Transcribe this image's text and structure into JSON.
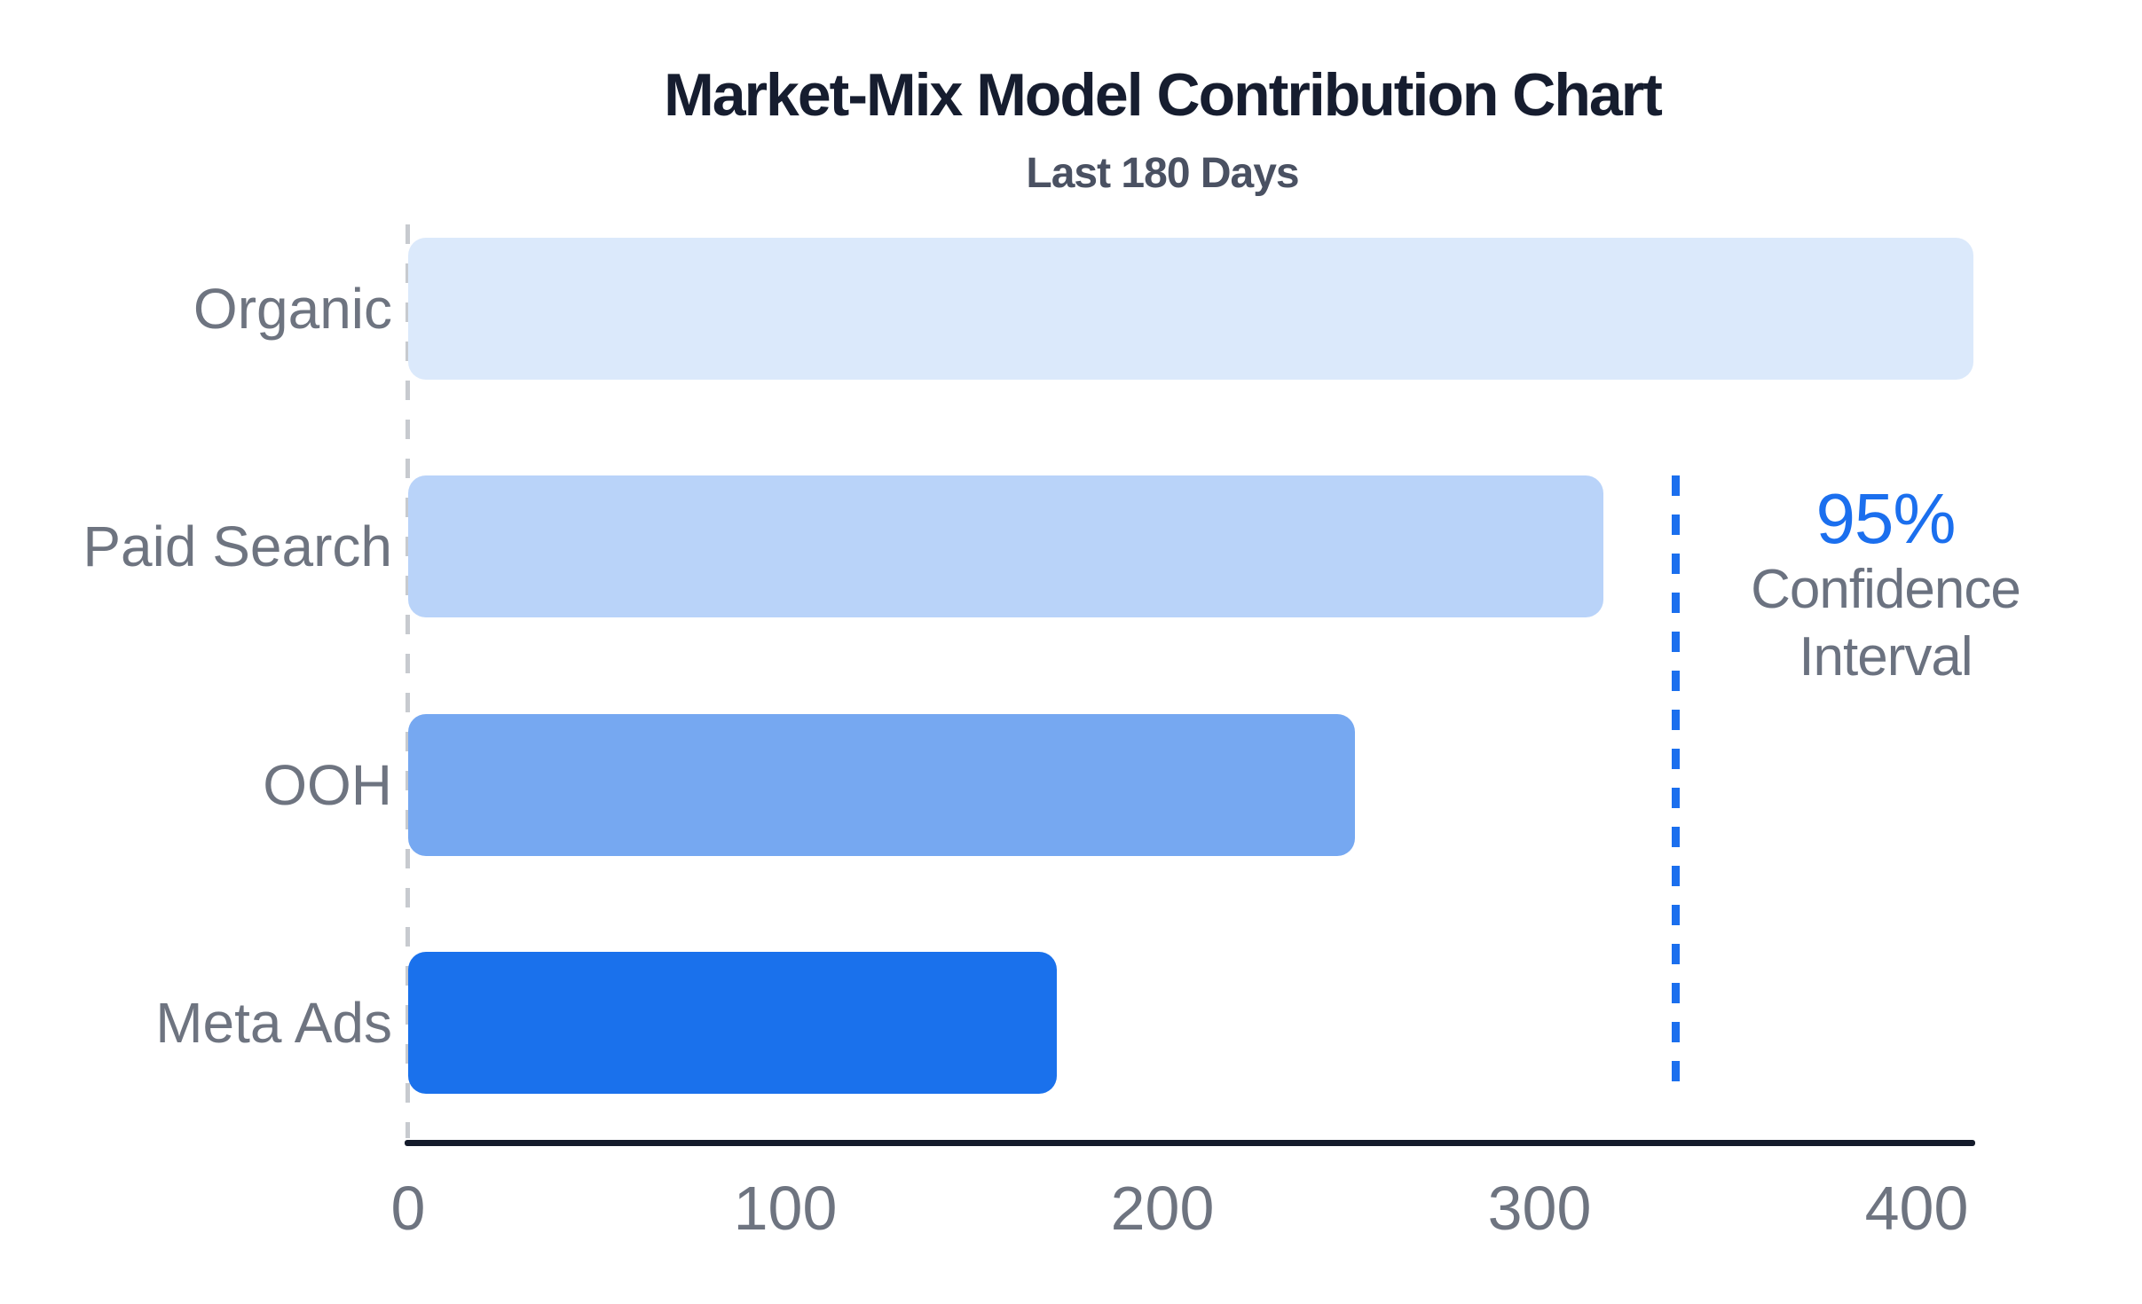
{
  "chart_data": {
    "type": "bar",
    "orientation": "horizontal",
    "title": "Market-Mix Model Contribution Chart",
    "subtitle": "Last 180 Days",
    "categories": [
      "Organic",
      "Paid Search",
      "OOH",
      "Meta Ads"
    ],
    "values": [
      415,
      317,
      251,
      172
    ],
    "bar_colors": [
      "#DBE9FB",
      "#B9D3F9",
      "#76A8F1",
      "#1A71EC"
    ],
    "x_ticks": [
      0,
      100,
      200,
      300,
      400
    ],
    "xlim": [
      0,
      400
    ],
    "xlabel": "",
    "ylabel": "",
    "grid": false,
    "legend": "none",
    "confidence_interval": {
      "x_value": 336,
      "label_value": "95%",
      "label_line1": "Confidence",
      "label_line2": "Interval"
    }
  },
  "colors": {
    "title": "#161D2F",
    "subtitle": "#4A5162",
    "category_label": "#6E7480",
    "tick_label": "#6E7480",
    "axis_line": "#141B2B",
    "zero_dashed_line": "#C7CACF",
    "ci_dashed_line": "#1B6FEE",
    "ci_value_text": "#1B6FEE",
    "ci_label_text": "#6B7280",
    "background": "#FFFFFF"
  }
}
